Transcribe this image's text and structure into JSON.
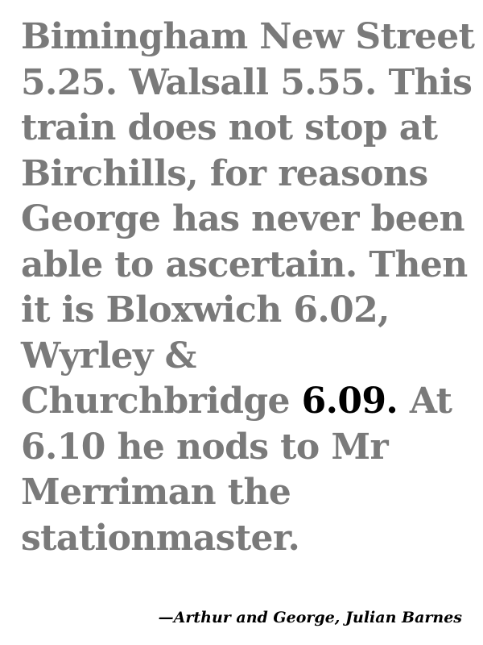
{
  "passage": {
    "lines": [
      "Bimingham New Street",
      "5.25. Walsall 5.55. This",
      "train does not stop at",
      "Birchills, for reasons",
      "George has never been",
      "able to ascertain. Then",
      "it is Bloxwich 6.02,",
      "Wyrley &",
      "Churchbridge ",
      "6.10 he nods to Mr",
      "Merriman the",
      "stationmaster."
    ],
    "highlight": "6.09.",
    "after_highlight": " At"
  },
  "attribution": "—Arthur and George, Julian Barnes",
  "colors": {
    "body_text": "#7a7a7a",
    "highlight_text": "#000000",
    "background": "#ffffff"
  }
}
